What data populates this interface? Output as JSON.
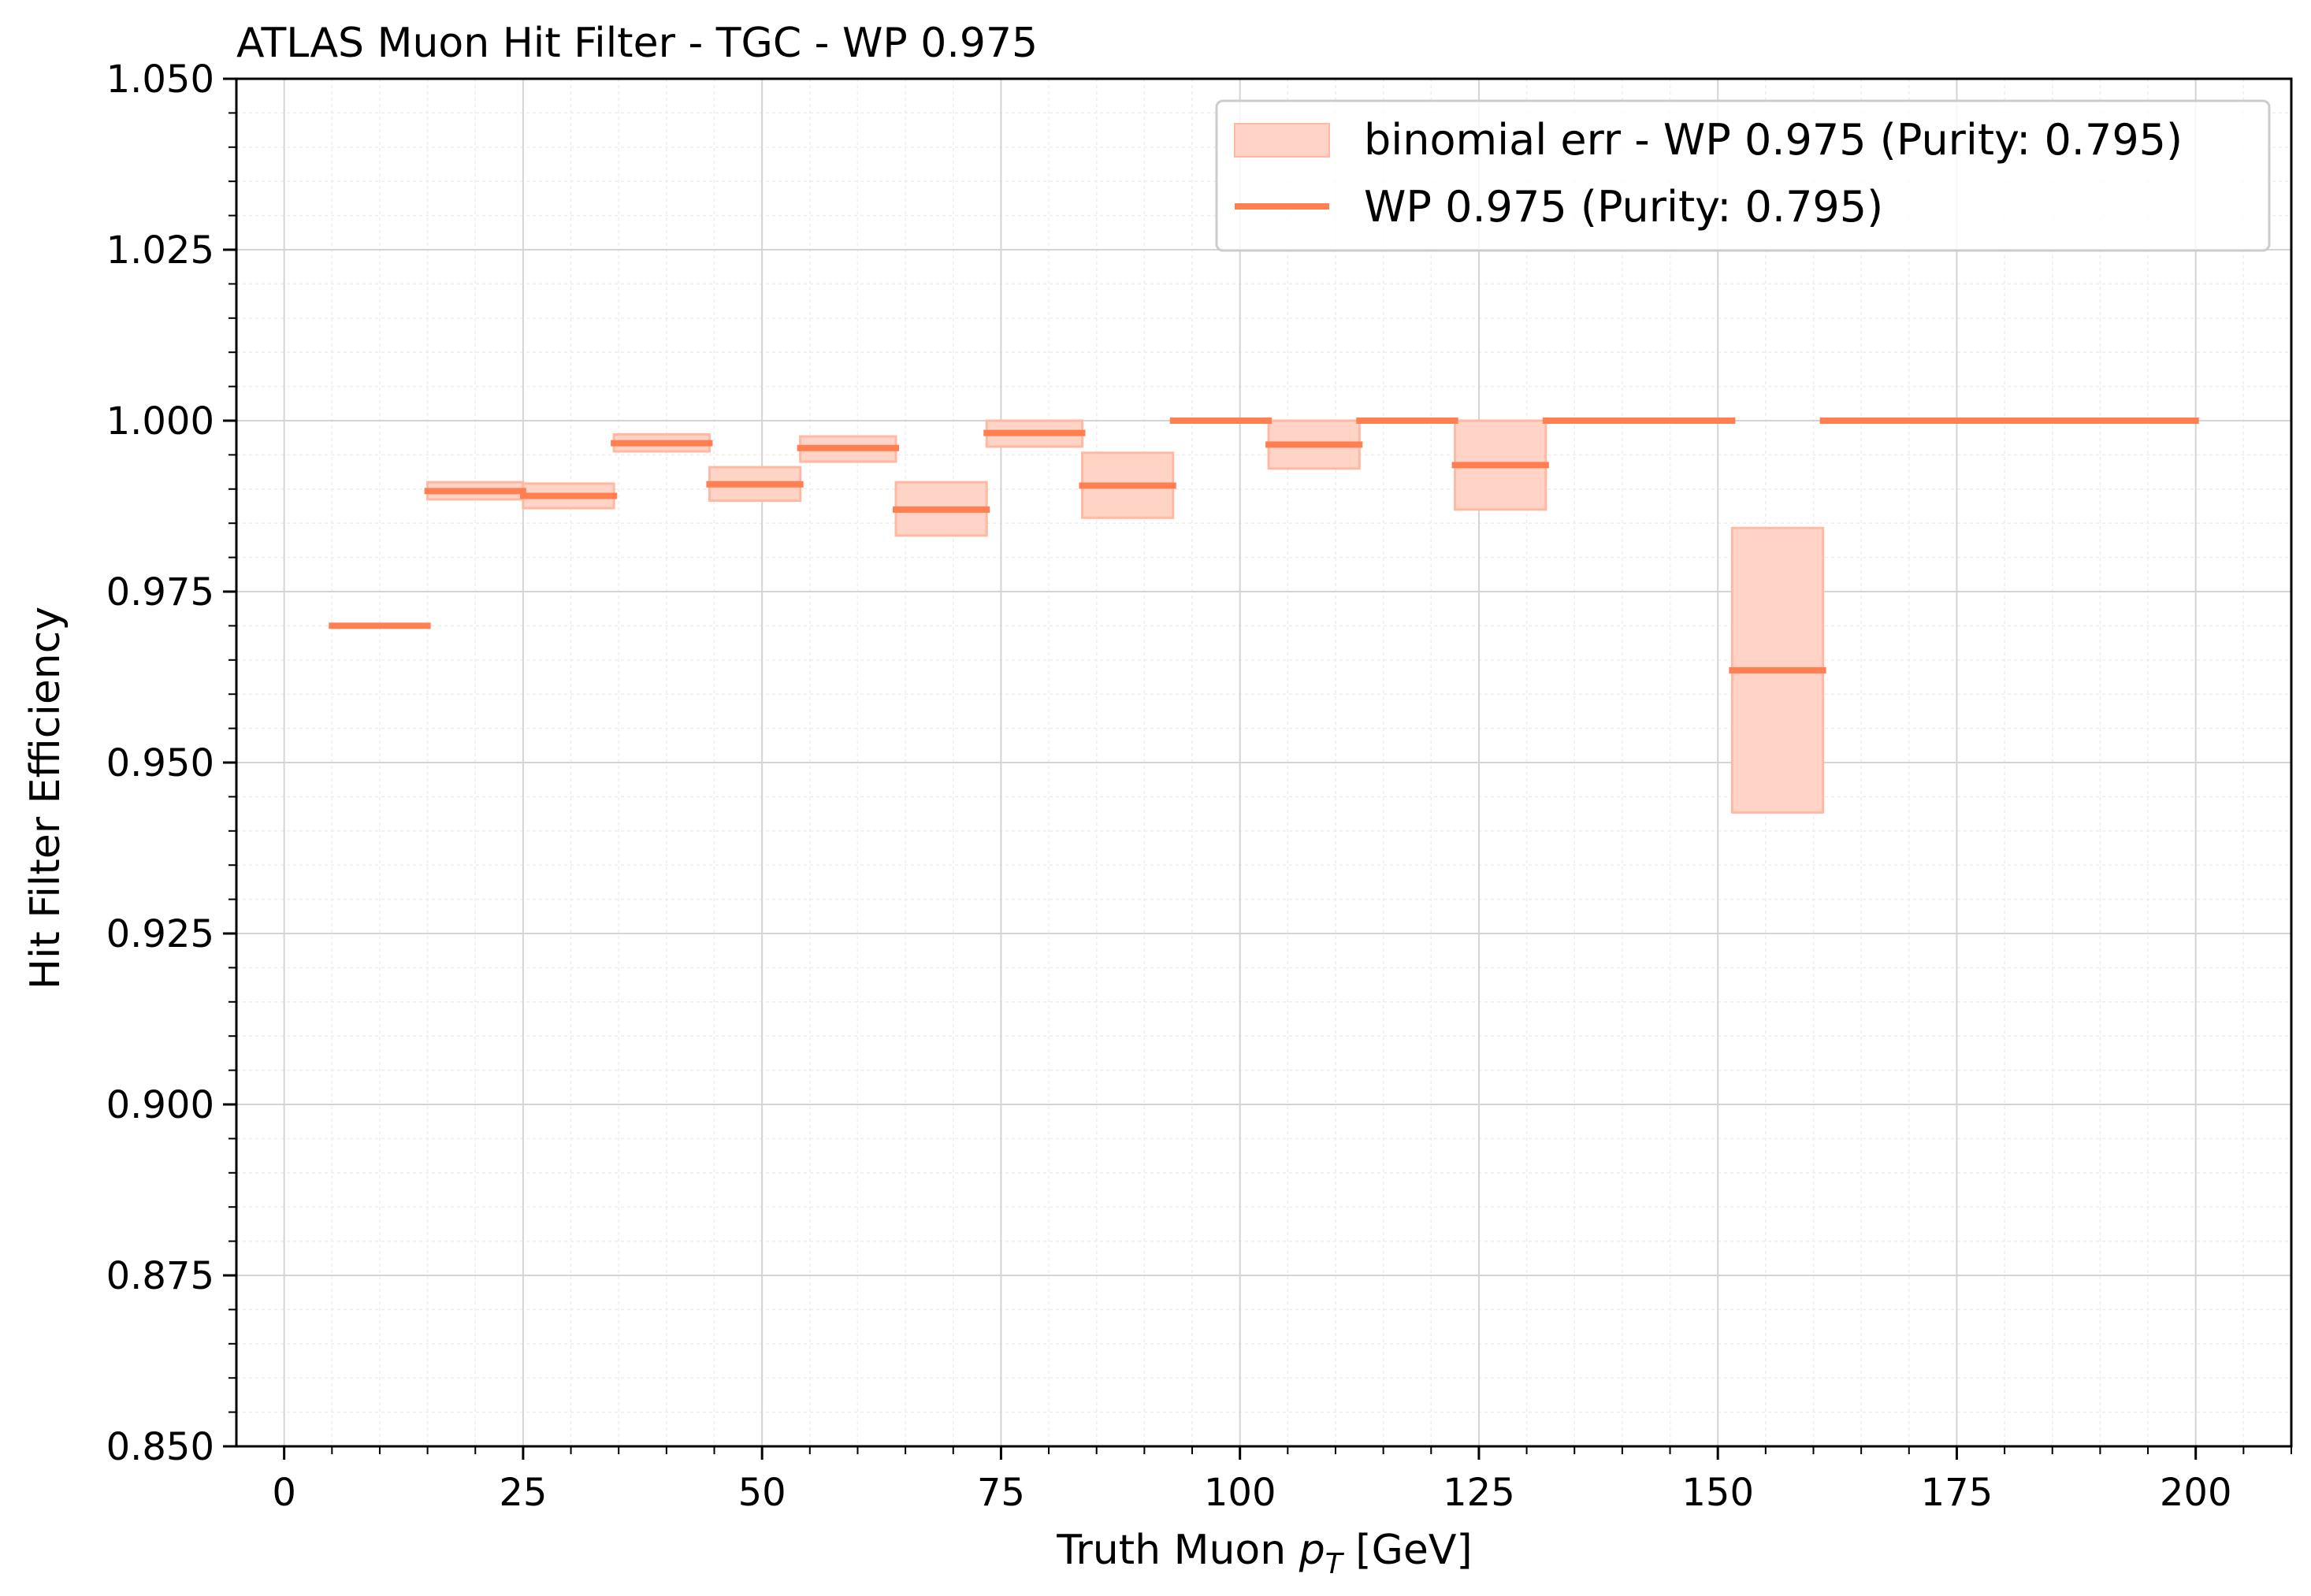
{
  "chart_data": {
    "type": "step",
    "title": "ATLAS Muon Hit Filter - TGC - WP 0.975",
    "xlabel_prefix": "Truth Muon ",
    "xlabel_var": "p",
    "xlabel_sub": "T",
    "xlabel_suffix": " [GeV]",
    "ylabel": "Hit Filter Efficiency",
    "xlim": [
      -5,
      210
    ],
    "ylim": [
      0.85,
      1.05
    ],
    "x_ticks": [
      0,
      25,
      50,
      75,
      100,
      125,
      150,
      175,
      200
    ],
    "x_tick_labels": [
      "0",
      "25",
      "50",
      "75",
      "100",
      "125",
      "150",
      "175",
      "200"
    ],
    "y_ticks": [
      0.85,
      0.875,
      0.9,
      0.925,
      0.95,
      0.975,
      1.0,
      1.025,
      1.05
    ],
    "y_tick_labels": [
      "0.850",
      "0.875",
      "0.900",
      "0.925",
      "0.950",
      "0.975",
      "1.000",
      "1.025",
      "1.050"
    ],
    "grid": true,
    "minor_grid": true,
    "legend_position": "top-right",
    "color_line": "#ff7f50",
    "color_band": "#ffd4c7",
    "series": [
      {
        "name": "WP 0.975 (Purity: 0.795)",
        "band_name": "binomial err - WP 0.975 (Purity: 0.795)",
        "bins": [
          {
            "x0": 5,
            "x1": 15,
            "y": 0.97,
            "lo": 0.97,
            "hi": 0.97
          },
          {
            "x0": 15,
            "x1": 25,
            "y": 0.9897,
            "lo": 0.9885,
            "hi": 0.991
          },
          {
            "x0": 25,
            "x1": 34.5,
            "y": 0.989,
            "lo": 0.9872,
            "hi": 0.9908
          },
          {
            "x0": 34.5,
            "x1": 44.5,
            "y": 0.9967,
            "lo": 0.9955,
            "hi": 0.998
          },
          {
            "x0": 44.5,
            "x1": 54,
            "y": 0.9907,
            "lo": 0.9883,
            "hi": 0.9932
          },
          {
            "x0": 54,
            "x1": 64,
            "y": 0.996,
            "lo": 0.994,
            "hi": 0.9977
          },
          {
            "x0": 64,
            "x1": 73.5,
            "y": 0.987,
            "lo": 0.9832,
            "hi": 0.991
          },
          {
            "x0": 73.5,
            "x1": 83.5,
            "y": 0.9982,
            "lo": 0.9962,
            "hi": 1.0
          },
          {
            "x0": 83.5,
            "x1": 93,
            "y": 0.9905,
            "lo": 0.9858,
            "hi": 0.9953
          },
          {
            "x0": 93,
            "x1": 103,
            "y": 1.0,
            "lo": 1.0,
            "hi": 1.0
          },
          {
            "x0": 103,
            "x1": 112.5,
            "y": 0.9965,
            "lo": 0.993,
            "hi": 1.0
          },
          {
            "x0": 112.5,
            "x1": 122.5,
            "y": 1.0,
            "lo": 1.0,
            "hi": 1.0
          },
          {
            "x0": 122.5,
            "x1": 132,
            "y": 0.9935,
            "lo": 0.987,
            "hi": 1.0
          },
          {
            "x0": 132,
            "x1": 151.5,
            "y": 1.0,
            "lo": 1.0,
            "hi": 1.0
          },
          {
            "x0": 151.5,
            "x1": 161,
            "y": 0.9635,
            "lo": 0.9427,
            "hi": 0.9843
          },
          {
            "x0": 161,
            "x1": 200,
            "y": 1.0,
            "lo": 1.0,
            "hi": 1.0
          }
        ]
      }
    ]
  }
}
